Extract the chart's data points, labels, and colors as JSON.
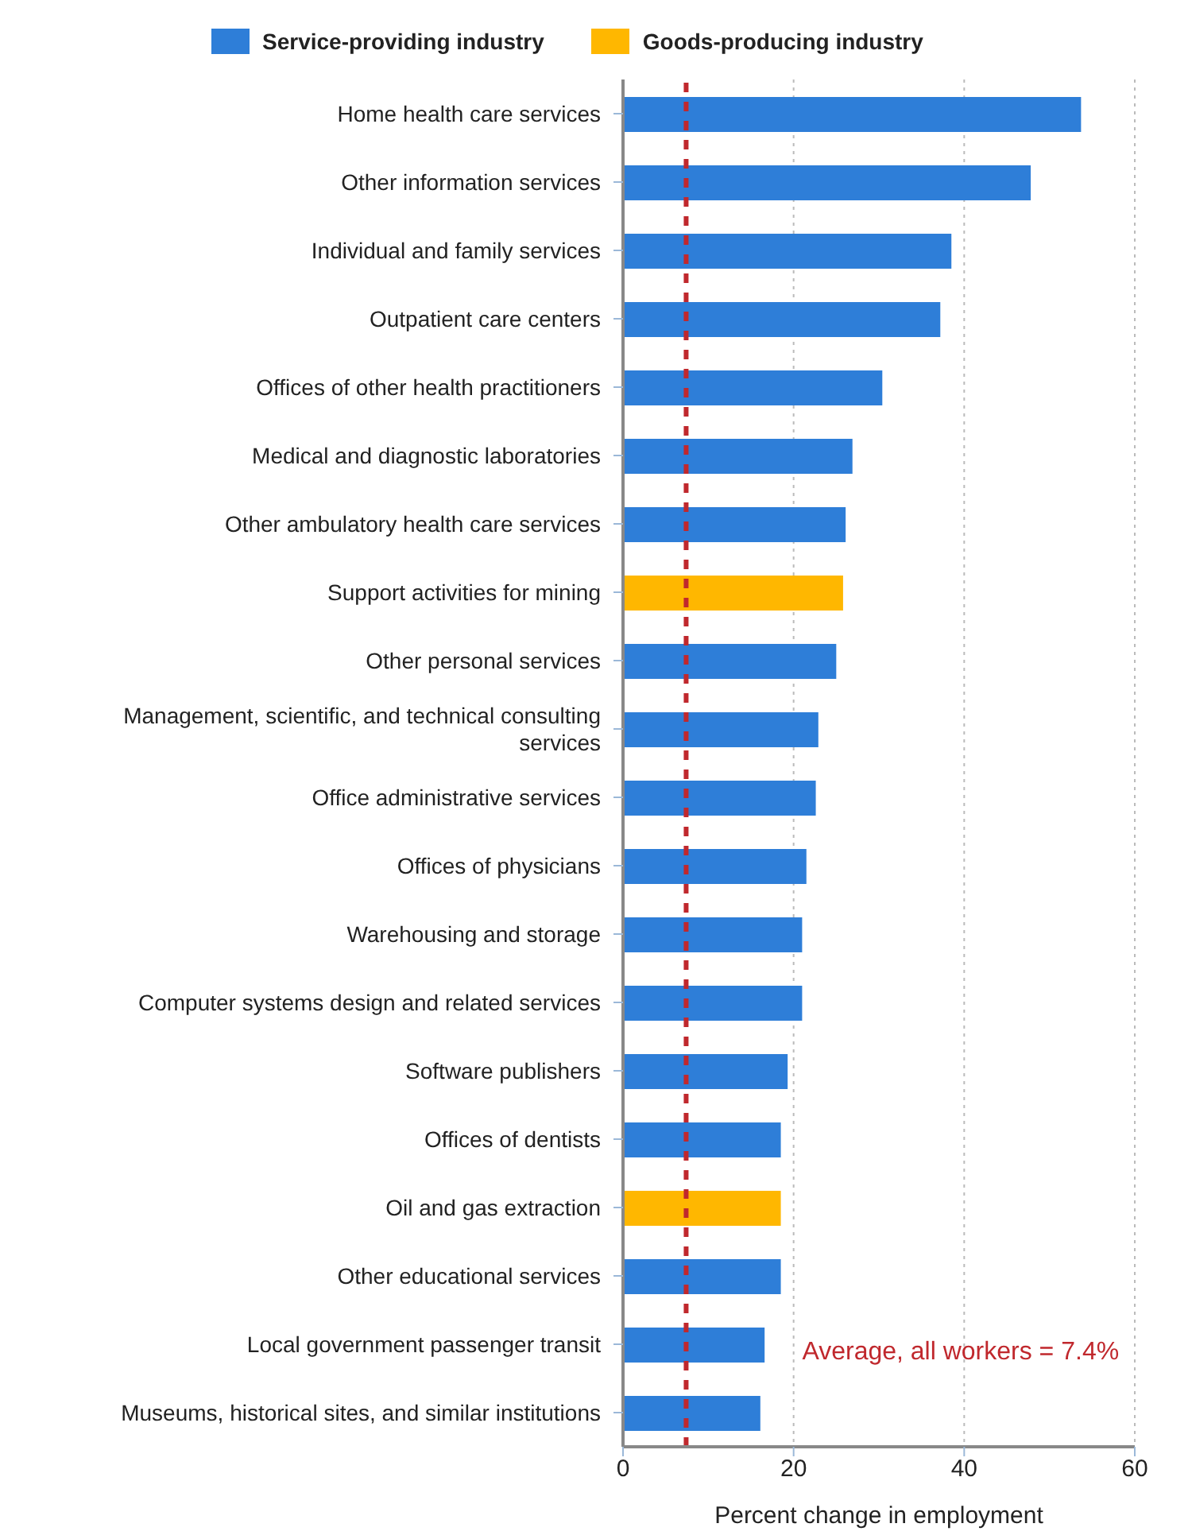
{
  "chart_data": {
    "type": "bar",
    "orientation": "horizontal",
    "stacked": true,
    "categories": [
      "Home health care services",
      "Other information services",
      "Individual and family services",
      "Outpatient care centers",
      "Offices of other health practitioners",
      "Medical and diagnostic laboratories",
      "Other ambulatory health care services",
      "Support activities for mining",
      "Other personal services",
      "Management, scientific, and technical consulting services",
      "Office administrative services",
      "Offices of physicians",
      "Warehousing and storage",
      "Computer systems design and related services",
      "Software publishers",
      "Offices of dentists",
      "Oil and gas extraction",
      "Other educational services",
      "Local government passenger transit",
      "Museums, historical sites, and similar institutions"
    ],
    "series": [
      {
        "name": "Service-providing industry",
        "color": "#2e7ed8",
        "values": [
          53.7,
          47.8,
          38.5,
          37.2,
          30.4,
          26.9,
          26.1,
          null,
          25.0,
          22.9,
          22.6,
          21.5,
          21.0,
          21.0,
          19.3,
          18.5,
          null,
          18.5,
          16.6,
          16.1
        ]
      },
      {
        "name": "Goods-producing industry",
        "color": "#ffb700",
        "values": [
          null,
          null,
          null,
          null,
          null,
          null,
          null,
          25.8,
          null,
          null,
          null,
          null,
          null,
          null,
          null,
          null,
          18.5,
          null,
          null,
          null
        ]
      }
    ],
    "xlabel": "Percent change in employment",
    "xlim": [
      0,
      60
    ],
    "xticks": [
      0,
      20,
      40,
      60
    ],
    "grid": "x",
    "legend": "top left",
    "ref_lines": [
      {
        "axis": "x",
        "value": 7.4,
        "label": "Average, all workers = 7.4%",
        "color": "#c0282d",
        "line_style": "dashed"
      }
    ]
  }
}
